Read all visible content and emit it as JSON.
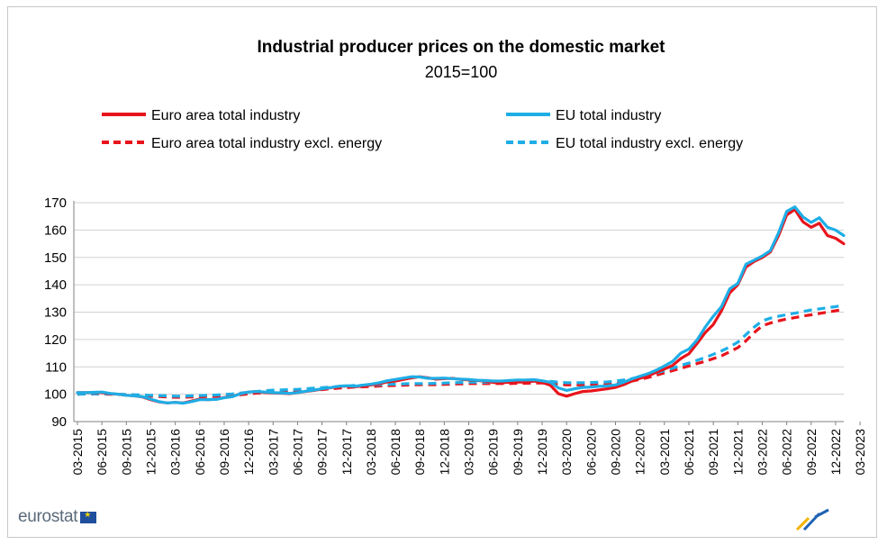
{
  "chart_data": {
    "type": "line",
    "title": "Industrial producer prices on the domestic market",
    "subtitle": "2015=100",
    "ylim": [
      90,
      170
    ],
    "yticks": [
      90,
      100,
      110,
      120,
      130,
      140,
      150,
      160,
      170
    ],
    "xtick_labels": [
      "03-2015",
      "06-2015",
      "09-2015",
      "12-2015",
      "03-2016",
      "06-2016",
      "09-2016",
      "12-2016",
      "03-2017",
      "06-2017",
      "09-2017",
      "12-2017",
      "03-2018",
      "06-2018",
      "09-2018",
      "12-2018",
      "03-2019",
      "06-2019",
      "09-2019",
      "12-2019",
      "03-2020",
      "06-2020",
      "09-2020",
      "12-2020",
      "03-2021",
      "06-2021",
      "09-2021",
      "12-2021",
      "03-2022",
      "06-2022",
      "09-2022",
      "12-2022",
      "03-2023"
    ],
    "legend_position": "top",
    "series": [
      {
        "name": "Euro area total industry",
        "color": "#e8141c",
        "dash": "solid",
        "values": [
          100.6,
          100.6,
          100.6,
          100.6,
          100.2,
          100.0,
          99.6,
          99.4,
          99.0,
          98.0,
          97.2,
          96.8,
          97.0,
          96.8,
          97.5,
          98.2,
          98.0,
          98.2,
          98.8,
          99.2,
          100.2,
          100.8,
          101.0,
          100.6,
          100.5,
          100.4,
          100.2,
          100.6,
          101.0,
          101.4,
          101.9,
          102.3,
          102.8,
          103.0,
          102.7,
          103.0,
          103.4,
          103.8,
          104.5,
          104.8,
          105.4,
          106.0,
          106.4,
          106.0,
          105.5,
          105.7,
          105.8,
          105.4,
          105.2,
          105.0,
          104.8,
          104.3,
          104.2,
          104.4,
          104.5,
          104.4,
          104.8,
          104.3,
          103.3,
          100.2,
          99.3,
          100.2,
          101.0,
          101.2,
          101.6,
          102.0,
          102.5,
          103.5,
          104.8,
          105.8,
          106.7,
          108.0,
          109.2,
          110.5,
          113.0,
          114.8,
          118.5,
          122.5,
          125.5,
          130.5,
          137.0,
          140.0,
          146.5,
          148.5,
          150.0,
          152.0,
          158.0,
          165.5,
          167.5,
          163.0,
          161.0,
          162.5,
          158.0,
          157.0,
          155.0
        ]
      },
      {
        "name": "EU total industry",
        "color": "#1eaee6",
        "dash": "solid",
        "values": [
          100.6,
          100.6,
          100.7,
          100.8,
          100.3,
          100.0,
          99.6,
          99.4,
          99.1,
          98.2,
          97.3,
          96.8,
          97.0,
          96.7,
          97.3,
          98.0,
          98.0,
          98.1,
          98.7,
          99.1,
          100.2,
          100.8,
          101.0,
          100.8,
          100.6,
          100.5,
          100.3,
          100.6,
          101.1,
          101.5,
          102.0,
          102.4,
          102.9,
          103.1,
          102.9,
          103.3,
          103.7,
          104.2,
          104.9,
          105.4,
          105.9,
          106.4,
          106.3,
          105.8,
          105.8,
          105.9,
          105.7,
          105.5,
          105.4,
          105.1,
          105.0,
          104.8,
          104.8,
          105.0,
          105.2,
          105.2,
          105.3,
          104.9,
          104.4,
          102.3,
          101.4,
          102.0,
          102.5,
          102.6,
          102.9,
          103.0,
          103.4,
          104.4,
          105.6,
          106.6,
          107.5,
          108.8,
          110.3,
          112.0,
          115.0,
          116.5,
          119.8,
          124.5,
          128.5,
          132.0,
          138.5,
          140.5,
          147.5,
          149.0,
          150.5,
          152.5,
          159.0,
          166.8,
          168.5,
          164.8,
          162.8,
          164.5,
          161.0,
          160.0,
          158.0
        ]
      },
      {
        "name": "Euro area total industry excl. energy",
        "color": "#e8141c",
        "dash": "dashed",
        "values": [
          100.0,
          100.1,
          100.1,
          100.1,
          100.0,
          99.9,
          99.8,
          99.6,
          99.5,
          99.3,
          99.2,
          99.0,
          98.9,
          98.9,
          99.0,
          99.1,
          99.2,
          99.3,
          99.4,
          99.6,
          99.8,
          100.1,
          100.4,
          100.6,
          100.8,
          100.9,
          101.0,
          101.1,
          101.3,
          101.5,
          101.7,
          102.0,
          102.2,
          102.4,
          102.6,
          102.7,
          102.8,
          103.0,
          103.1,
          103.2,
          103.3,
          103.4,
          103.5,
          103.5,
          103.5,
          103.6,
          103.7,
          103.8,
          103.9,
          103.9,
          103.9,
          103.9,
          103.9,
          103.9,
          104.0,
          104.0,
          104.1,
          104.1,
          104.0,
          103.6,
          103.4,
          103.4,
          103.4,
          103.5,
          103.6,
          103.7,
          103.9,
          104.3,
          104.8,
          105.4,
          106.1,
          107.0,
          107.8,
          108.6,
          109.5,
          110.3,
          111.2,
          112.0,
          113.0,
          114.0,
          115.5,
          117.0,
          119.5,
          122.5,
          125.0,
          126.0,
          126.8,
          127.5,
          128.0,
          128.6,
          129.0,
          129.5,
          130.0,
          130.5,
          131.0
        ]
      },
      {
        "name": "EU total industry excl. energy",
        "color": "#1eaee6",
        "dash": "dashed",
        "values": [
          100.0,
          100.1,
          100.1,
          100.2,
          100.1,
          100.0,
          99.9,
          99.8,
          99.7,
          99.6,
          99.5,
          99.4,
          99.3,
          99.3,
          99.4,
          99.5,
          99.6,
          99.7,
          99.9,
          100.1,
          100.4,
          100.7,
          101.0,
          101.3,
          101.5,
          101.6,
          101.7,
          101.8,
          102.0,
          102.2,
          102.4,
          102.6,
          102.8,
          103.0,
          103.2,
          103.3,
          103.4,
          103.5,
          103.6,
          103.7,
          103.8,
          103.9,
          103.9,
          103.9,
          104.0,
          104.1,
          104.2,
          104.3,
          104.4,
          104.4,
          104.4,
          104.5,
          104.5,
          104.5,
          104.6,
          104.7,
          104.8,
          104.8,
          104.7,
          104.4,
          104.2,
          104.2,
          104.2,
          104.3,
          104.4,
          104.5,
          104.8,
          105.2,
          105.7,
          106.3,
          107.0,
          107.8,
          108.6,
          109.5,
          110.5,
          111.4,
          112.4,
          113.4,
          114.6,
          115.8,
          117.3,
          119.0,
          121.8,
          124.5,
          126.8,
          127.8,
          128.5,
          129.1,
          129.6,
          130.2,
          130.8,
          131.2,
          131.6,
          132.0,
          132.5
        ]
      }
    ]
  },
  "branding": {
    "logo_text": "eurostat"
  }
}
